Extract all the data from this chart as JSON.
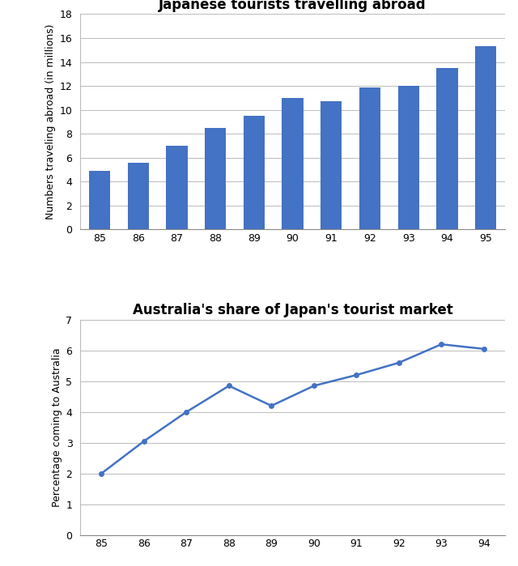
{
  "bar_years": [
    "85",
    "86",
    "87",
    "88",
    "89",
    "90",
    "91",
    "92",
    "93",
    "94",
    "95"
  ],
  "bar_values": [
    4.9,
    5.55,
    7.0,
    8.45,
    9.5,
    11.0,
    10.7,
    11.85,
    12.0,
    13.5,
    15.35
  ],
  "bar_color": "#4472C4",
  "bar_title": "Japanese tourists travelling abroad",
  "bar_ylabel": "Numbers traveling abroad (in millions)",
  "bar_ylim": [
    0,
    18
  ],
  "bar_yticks": [
    0,
    2,
    4,
    6,
    8,
    10,
    12,
    14,
    16,
    18
  ],
  "line_years": [
    "85",
    "86",
    "87",
    "88",
    "89",
    "90",
    "91",
    "92",
    "93",
    "94"
  ],
  "line_values": [
    2.0,
    3.05,
    4.0,
    4.85,
    4.2,
    4.85,
    5.2,
    5.6,
    6.2,
    6.05
  ],
  "line_color": "#4472C4",
  "line_title": "Australia's share of Japan's tourist market",
  "line_ylabel": "Percentage coming to Australia",
  "line_ylim": [
    0,
    7
  ],
  "line_yticks": [
    0,
    1,
    2,
    3,
    4,
    5,
    6,
    7
  ],
  "background_color": "#FFFFFF",
  "grid_color": "#BBBBBB",
  "title_fontsize": 12,
  "label_fontsize": 9,
  "tick_fontsize": 9
}
